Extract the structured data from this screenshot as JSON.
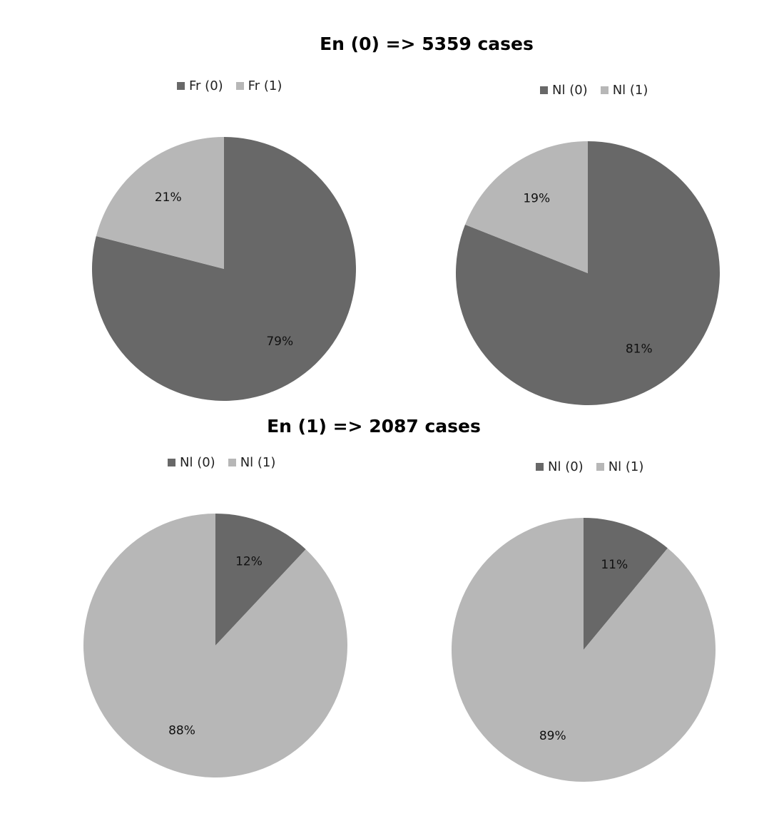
{
  "sections": [
    {
      "title": "En (0) => 5359 cases"
    },
    {
      "title": "En (1) => 2087 cases"
    }
  ],
  "colors": {
    "class0": "#686868",
    "class1": "#b7b7b7"
  },
  "chart_data": [
    {
      "type": "pie",
      "section": 0,
      "legend_placement": "top",
      "slices": [
        {
          "label": "Fr (0)",
          "value": 79,
          "display": "79%"
        },
        {
          "label": "Fr (1)",
          "value": 21,
          "display": "21%"
        }
      ]
    },
    {
      "type": "pie",
      "section": 0,
      "legend_placement": "top",
      "slices": [
        {
          "label": "Nl (0)",
          "value": 81,
          "display": "81%"
        },
        {
          "label": "Nl (1)",
          "value": 19,
          "display": "19%"
        }
      ]
    },
    {
      "type": "pie",
      "section": 1,
      "legend_placement": "top",
      "slices": [
        {
          "label": "Nl (0)",
          "value": 12,
          "display": "12%"
        },
        {
          "label": "Nl (1)",
          "value": 88,
          "display": "88%"
        }
      ]
    },
    {
      "type": "pie",
      "section": 1,
      "legend_placement": "top",
      "slices": [
        {
          "label": "Nl (0)",
          "value": 11,
          "display": "11%"
        },
        {
          "label": "Nl (1)",
          "value": 89,
          "display": "89%"
        }
      ]
    }
  ]
}
